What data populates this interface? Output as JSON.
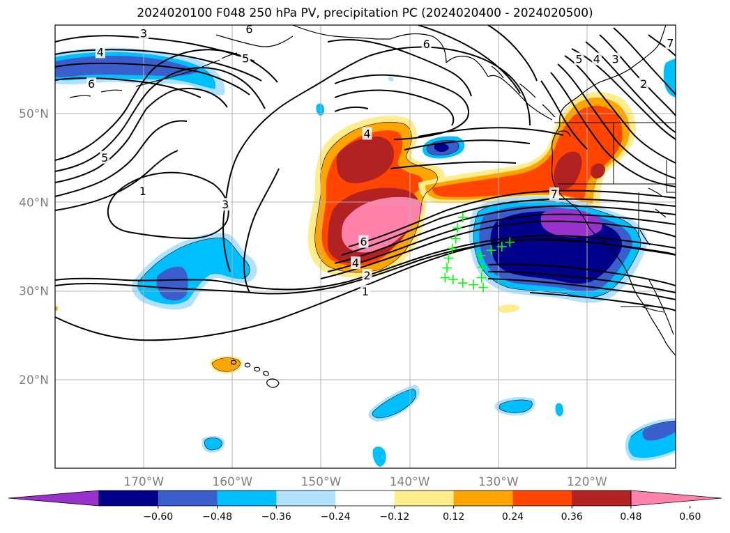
{
  "title": "2024020100 F048 250 hPa PV, precipitation PC (2024020400 - 2024020500)",
  "lat_labels": [
    {
      "text": "50°N",
      "lat": 50
    },
    {
      "text": "40°N",
      "lat": 40
    },
    {
      "text": "30°N",
      "lat": 30
    },
    {
      "text": "20°N",
      "lat": 20
    }
  ],
  "lon_labels": [
    {
      "text": "170°W",
      "lon": -170
    },
    {
      "text": "160°W",
      "lon": -160
    },
    {
      "text": "150°W",
      "lon": -150
    },
    {
      "text": "140°W",
      "lon": -140
    },
    {
      "text": "130°W",
      "lon": -130
    },
    {
      "text": "120°W",
      "lon": -120
    }
  ],
  "colorbar": {
    "ticks": [
      "−0.60",
      "−0.48",
      "−0.36",
      "−0.24",
      "−0.12",
      "0.12",
      "0.24",
      "0.36",
      "0.48",
      "0.60"
    ],
    "colors": [
      "#9932cc",
      "#00008b",
      "#3a5fcd",
      "#00bfff",
      "#b0e2ff",
      "#ffffff",
      "#ffec8b",
      "#ffa500",
      "#ff4500",
      "#b22222",
      "#ff82ab"
    ]
  },
  "pv_contour_labels": [
    {
      "text": "3",
      "lon": -170,
      "lat": 59.0
    },
    {
      "text": "4",
      "lon": -174.9,
      "lat": 56.9
    },
    {
      "text": "6",
      "lon": -175.9,
      "lat": 53.3
    },
    {
      "text": "5",
      "lon": -174.4,
      "lat": 45.0
    },
    {
      "text": "1",
      "lon": -170.1,
      "lat": 41.2
    },
    {
      "text": "3",
      "lon": -160.8,
      "lat": 39.7
    },
    {
      "text": "5",
      "lon": -158.5,
      "lat": 56.2
    },
    {
      "text": "6",
      "lon": -158.1,
      "lat": 59.5
    },
    {
      "text": "6",
      "lon": -138.1,
      "lat": 57.8
    },
    {
      "text": "4",
      "lon": -144.8,
      "lat": 47.7
    },
    {
      "text": "6",
      "lon": -145.2,
      "lat": 35.5
    },
    {
      "text": "4",
      "lon": -146.1,
      "lat": 33.1
    },
    {
      "text": "2",
      "lon": -144.8,
      "lat": 31.7
    },
    {
      "text": "1",
      "lon": -145.0,
      "lat": 29.9
    },
    {
      "text": "7",
      "lon": -123.7,
      "lat": 40.9
    },
    {
      "text": "5",
      "lon": -120.9,
      "lat": 56.1
    },
    {
      "text": "4",
      "lon": -118.9,
      "lat": 56.1
    },
    {
      "text": "3",
      "lon": -116.8,
      "lat": 56.1
    },
    {
      "text": "2",
      "lon": -113.6,
      "lat": 53.3
    },
    {
      "text": "7",
      "lon": -110.6,
      "lat": 57.9
    }
  ],
  "precip_pc_cells": [
    {
      "level": 0.48,
      "lon": -144.4,
      "lat": 45.5
    },
    {
      "level": 0.6,
      "lon": -143.5,
      "lat": 37.7
    },
    {
      "level": 0.48,
      "lon": -122.9,
      "lat": 43.5
    },
    {
      "level": -0.6,
      "lon": -126.0,
      "lat": 35.4
    },
    {
      "level": -0.6,
      "lon": -123.2,
      "lat": 37.0
    },
    {
      "level": -0.6,
      "lon": -137.0,
      "lat": 46.3
    },
    {
      "level": -0.36,
      "lon": -166.5,
      "lat": 56.3
    },
    {
      "level": -0.36,
      "lon": -164.8,
      "lat": 30.5
    },
    {
      "level": 0.36,
      "lon": -161.8,
      "lat": 21.9
    },
    {
      "level": 0.24,
      "lon": -128.8,
      "lat": 28.2
    }
  ],
  "forecast_markers": [
    {
      "lon": -134.0,
      "lat": 38.3
    },
    {
      "lon": -134.6,
      "lat": 37.1
    },
    {
      "lon": -134.8,
      "lat": 35.9
    },
    {
      "lon": -135.2,
      "lat": 34.8
    },
    {
      "lon": -135.6,
      "lat": 33.7
    },
    {
      "lon": -135.8,
      "lat": 32.6
    },
    {
      "lon": -136.0,
      "lat": 31.5
    },
    {
      "lon": -135.1,
      "lat": 31.3
    },
    {
      "lon": -134.0,
      "lat": 30.9
    },
    {
      "lon": -132.8,
      "lat": 30.7
    },
    {
      "lon": -131.7,
      "lat": 30.4
    },
    {
      "lon": -131.9,
      "lat": 31.5
    },
    {
      "lon": -131.8,
      "lat": 32.7
    },
    {
      "lon": -132.0,
      "lat": 34.0
    },
    {
      "lon": -130.8,
      "lat": 34.6
    },
    {
      "lon": -129.6,
      "lat": 35.0
    },
    {
      "lon": -128.7,
      "lat": 35.5
    }
  ]
}
